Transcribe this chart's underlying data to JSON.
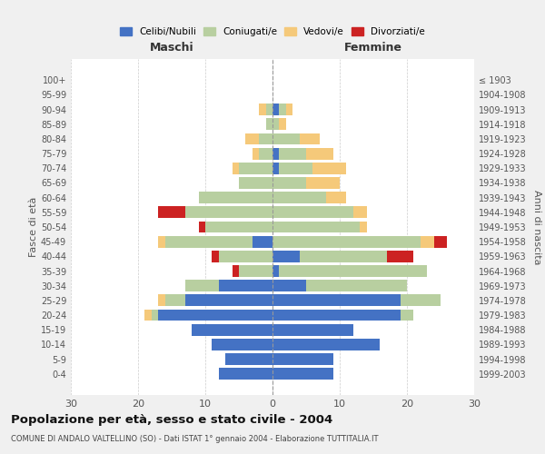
{
  "age_groups": [
    "0-4",
    "5-9",
    "10-14",
    "15-19",
    "20-24",
    "25-29",
    "30-34",
    "35-39",
    "40-44",
    "45-49",
    "50-54",
    "55-59",
    "60-64",
    "65-69",
    "70-74",
    "75-79",
    "80-84",
    "85-89",
    "90-94",
    "95-99",
    "100+"
  ],
  "birth_years": [
    "1999-2003",
    "1994-1998",
    "1989-1993",
    "1984-1988",
    "1979-1983",
    "1974-1978",
    "1969-1973",
    "1964-1968",
    "1959-1963",
    "1954-1958",
    "1949-1953",
    "1944-1948",
    "1939-1943",
    "1934-1938",
    "1929-1933",
    "1924-1928",
    "1919-1923",
    "1914-1918",
    "1909-1913",
    "1904-1908",
    "≤ 1903"
  ],
  "colors": {
    "celibi": "#4472c4",
    "coniugati": "#b8cfa0",
    "vedovi": "#f5c97a",
    "divorziati": "#cc2222"
  },
  "males": {
    "celibi": [
      8,
      7,
      9,
      12,
      17,
      13,
      8,
      0,
      0,
      3,
      0,
      0,
      0,
      0,
      0,
      0,
      0,
      0,
      0,
      0,
      0
    ],
    "coniugati": [
      0,
      0,
      0,
      0,
      1,
      3,
      5,
      5,
      8,
      13,
      10,
      13,
      11,
      5,
      5,
      2,
      2,
      1,
      1,
      0,
      0
    ],
    "vedovi": [
      0,
      0,
      0,
      0,
      1,
      1,
      0,
      0,
      0,
      1,
      0,
      0,
      0,
      0,
      1,
      1,
      2,
      0,
      1,
      0,
      0
    ],
    "divorziati": [
      0,
      0,
      0,
      0,
      0,
      0,
      0,
      1,
      1,
      0,
      1,
      4,
      0,
      0,
      0,
      0,
      0,
      0,
      0,
      0,
      0
    ]
  },
  "females": {
    "celibi": [
      9,
      9,
      16,
      12,
      19,
      19,
      5,
      1,
      4,
      0,
      0,
      0,
      0,
      0,
      1,
      1,
      0,
      0,
      1,
      0,
      0
    ],
    "coniugati": [
      0,
      0,
      0,
      0,
      2,
      6,
      15,
      22,
      13,
      22,
      13,
      12,
      8,
      5,
      5,
      4,
      4,
      1,
      1,
      0,
      0
    ],
    "vedovi": [
      0,
      0,
      0,
      0,
      0,
      0,
      0,
      0,
      0,
      2,
      1,
      2,
      3,
      5,
      5,
      4,
      3,
      1,
      1,
      0,
      0
    ],
    "divorziati": [
      0,
      0,
      0,
      0,
      0,
      0,
      0,
      0,
      4,
      2,
      0,
      0,
      0,
      0,
      0,
      0,
      0,
      0,
      0,
      0,
      0
    ]
  },
  "xlim": [
    -30,
    30
  ],
  "xticks": [
    -30,
    -20,
    -10,
    0,
    10,
    20,
    30
  ],
  "xticklabels": [
    "30",
    "20",
    "10",
    "0",
    "10",
    "20",
    "30"
  ],
  "title": "Popolazione per età, sesso e stato civile - 2004",
  "subtitle": "COMUNE DI ANDALO VALTELLINO (SO) - Dati ISTAT 1° gennaio 2004 - Elaborazione TUTTITALIA.IT",
  "ylabel_left": "Fasce di età",
  "ylabel_right": "Anni di nascita",
  "label_maschi": "Maschi",
  "label_femmine": "Femmine",
  "legend_labels": [
    "Celibi/Nubili",
    "Coniugati/e",
    "Vedovi/e",
    "Divorziati/e"
  ],
  "bg_color": "#f0f0f0",
  "plot_bg_color": "#ffffff"
}
